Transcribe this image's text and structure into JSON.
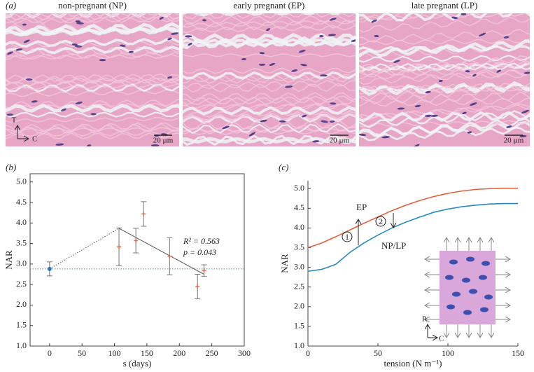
{
  "panels": {
    "a": "(a)"
  },
  "images": [
    {
      "title": "non-pregnant (NP)",
      "scale_bar": "20 µm"
    },
    {
      "title": "early pregnant (EP)",
      "scale_bar": "20 µm"
    },
    {
      "title": "late pregnant (LP)",
      "scale_bar": "20 µm"
    }
  ],
  "image_axes": {
    "vertical": "T",
    "horizontal": "C"
  },
  "chart_data": [
    {
      "type": "scatter",
      "panel": "(b)",
      "xlabel": "s (days)",
      "ylabel": "NAR",
      "box": true,
      "xlim": [
        -30,
        300
      ],
      "ylim": [
        1.0,
        5.2
      ],
      "xticks": [
        0,
        50,
        100,
        150,
        200,
        250,
        300
      ],
      "yticks": [
        {
          "value": 1.0,
          "label": "1.0"
        },
        {
          "value": 1.5,
          "label": "1.5"
        },
        {
          "value": 2.0,
          "label": "2.0"
        },
        {
          "value": 2.5,
          "label": "2.5"
        },
        {
          "value": 3.0,
          "label": "3.0"
        },
        {
          "value": 3.5,
          "label": "3.5"
        },
        {
          "value": 4.0,
          "label": "4.0"
        },
        {
          "value": 4.5,
          "label": "4.5"
        },
        {
          "value": 5.0,
          "label": "5.0"
        }
      ],
      "series": [
        {
          "color": "#2a78b8",
          "marker": "circle",
          "x": [
            0
          ],
          "values": [
            2.88
          ],
          "errors": [
            0.17
          ]
        },
        {
          "color": "#e0704c",
          "marker": "plus",
          "x": [
            107,
            133,
            145,
            185,
            228,
            238
          ],
          "values": [
            3.42,
            3.57,
            4.22,
            3.19,
            2.45,
            2.84
          ],
          "errors": [
            0.46,
            0.3,
            0.3,
            0.45,
            0.3,
            0.14
          ]
        }
      ],
      "lines": [
        {
          "style": "dotted",
          "x": [
            0,
            107
          ],
          "values": [
            2.88,
            3.87
          ]
        },
        {
          "style": "solid",
          "x": [
            107,
            238
          ],
          "values": [
            3.87,
            2.75
          ]
        }
      ],
      "hline": 2.88,
      "annotations": [
        "R² = 0.563",
        "p = 0.043"
      ]
    },
    {
      "type": "line",
      "panel": "(c)",
      "xlabel": "tension (N m⁻¹)",
      "ylabel": "NAR",
      "box": false,
      "xlim": [
        0,
        150
      ],
      "ylim": [
        1.0,
        5.2
      ],
      "xticks": [
        0,
        50,
        100,
        150
      ],
      "yticks": [
        {
          "value": 1.0,
          "label": "1.0"
        },
        {
          "value": 1.5,
          "label": "1.5"
        },
        {
          "value": 2.0,
          "label": "2.0"
        },
        {
          "value": 2.5,
          "label": "2.5"
        },
        {
          "value": 3.0,
          "label": "3.0"
        },
        {
          "value": 3.5,
          "label": "3.5"
        },
        {
          "value": 4.0,
          "label": "4.0"
        },
        {
          "value": 4.5,
          "label": "4.5"
        },
        {
          "value": 5.0,
          "label": "5.0"
        }
      ],
      "x": [
        0,
        10,
        20,
        30,
        40,
        50,
        60,
        70,
        80,
        90,
        100,
        110,
        120,
        130,
        140,
        150
      ],
      "series": [
        {
          "name": "EP",
          "color": "#e0603a",
          "values": [
            3.5,
            3.62,
            3.78,
            3.95,
            4.12,
            4.28,
            4.44,
            4.58,
            4.7,
            4.8,
            4.88,
            4.94,
            4.98,
            5.0,
            5.01,
            5.01
          ]
        },
        {
          "name": "NP/LP",
          "color": "#2a8abf",
          "values": [
            2.9,
            2.95,
            3.08,
            3.38,
            3.62,
            3.82,
            4.0,
            4.15,
            4.28,
            4.4,
            4.48,
            4.54,
            4.58,
            4.61,
            4.62,
            4.62
          ]
        }
      ],
      "annotations": [
        "1",
        "2"
      ],
      "inset_axes": {
        "vertical": "R",
        "horizontal": "C"
      }
    }
  ]
}
